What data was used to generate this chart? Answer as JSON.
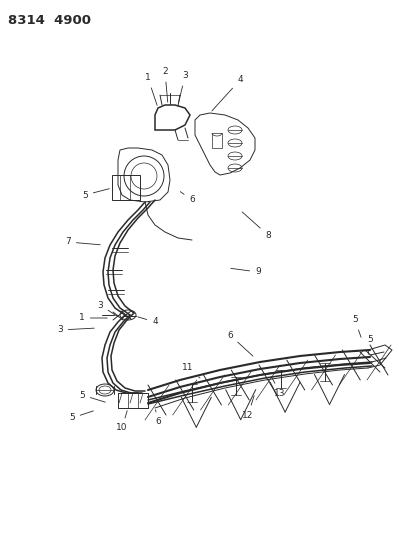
{
  "title": "8314  4900",
  "bg_color": "#ffffff",
  "line_color": "#2a2a2a",
  "fig_width": 3.99,
  "fig_height": 5.33,
  "dpi": 100,
  "lw_main": 1.1,
  "lw_thin": 0.7,
  "lw_thick": 1.5,
  "lw_hair": 0.5,
  "label_fs": 6.5,
  "title_fs": 9.5
}
